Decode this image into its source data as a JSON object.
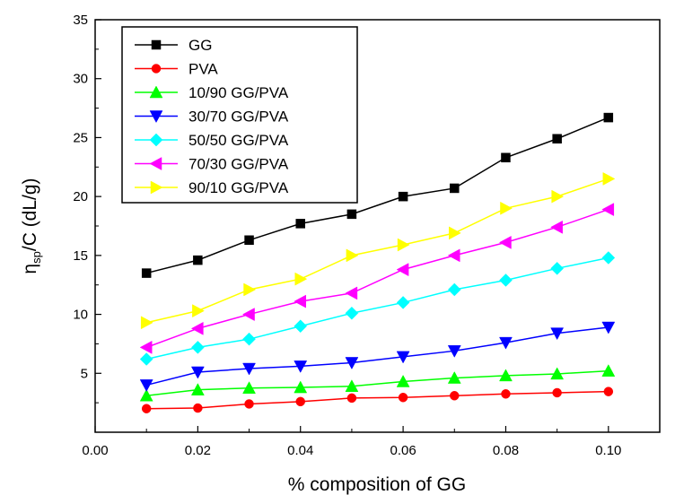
{
  "chart_data": {
    "type": "line",
    "xlabel": "% composition of GG",
    "ylabel_main": "η",
    "ylabel_sub": "sp",
    "ylabel_rest": "/C (dL/g)",
    "xlim": [
      0.0,
      0.11
    ],
    "ylim": [
      0,
      35
    ],
    "x_ticks": [
      "0.00",
      "0.02",
      "0.04",
      "0.06",
      "0.08",
      "0.10"
    ],
    "x_tick_values": [
      0.0,
      0.02,
      0.04,
      0.06,
      0.08,
      0.1
    ],
    "y_ticks": [
      "5",
      "10",
      "15",
      "20",
      "25",
      "30",
      "35"
    ],
    "y_tick_values": [
      5,
      10,
      15,
      20,
      25,
      30,
      35
    ],
    "grid": false,
    "legend_position": "top-left",
    "x": [
      0.01,
      0.02,
      0.03,
      0.04,
      0.05,
      0.06,
      0.07,
      0.08,
      0.09,
      0.1
    ],
    "series": [
      {
        "name": "GG",
        "color": "#000000",
        "marker": "square",
        "values": [
          13.5,
          14.6,
          16.3,
          17.7,
          18.5,
          20.0,
          20.7,
          23.3,
          24.9,
          26.7
        ]
      },
      {
        "name": "PVA",
        "color": "#ff0000",
        "marker": "circle",
        "values": [
          2.0,
          2.05,
          2.4,
          2.6,
          2.9,
          2.95,
          3.1,
          3.25,
          3.35,
          3.45
        ]
      },
      {
        "name": "10/90 GG/PVA",
        "color": "#00ff00",
        "marker": "triangle-up",
        "values": [
          3.1,
          3.6,
          3.75,
          3.8,
          3.9,
          4.3,
          4.6,
          4.8,
          4.95,
          5.2
        ]
      },
      {
        "name": "30/70 GG/PVA",
        "color": "#0000ff",
        "marker": "triangle-down",
        "values": [
          4.0,
          5.1,
          5.4,
          5.6,
          5.9,
          6.4,
          6.9,
          7.6,
          8.4,
          8.9
        ]
      },
      {
        "name": "50/50 GG/PVA",
        "color": "#00ffff",
        "marker": "diamond",
        "values": [
          6.2,
          7.2,
          7.9,
          9.0,
          10.1,
          11.0,
          12.1,
          12.9,
          13.9,
          14.8
        ]
      },
      {
        "name": "70/30 GG/PVA",
        "color": "#ff00ff",
        "marker": "triangle-left",
        "values": [
          7.2,
          8.8,
          10.0,
          11.1,
          11.8,
          13.8,
          15.0,
          16.1,
          17.4,
          18.9
        ]
      },
      {
        "name": "90/10 GG/PVA",
        "color": "#ffff00",
        "marker": "triangle-right",
        "values": [
          9.3,
          10.3,
          12.1,
          13.0,
          15.0,
          15.9,
          16.9,
          19.0,
          20.0,
          21.5
        ]
      }
    ]
  }
}
